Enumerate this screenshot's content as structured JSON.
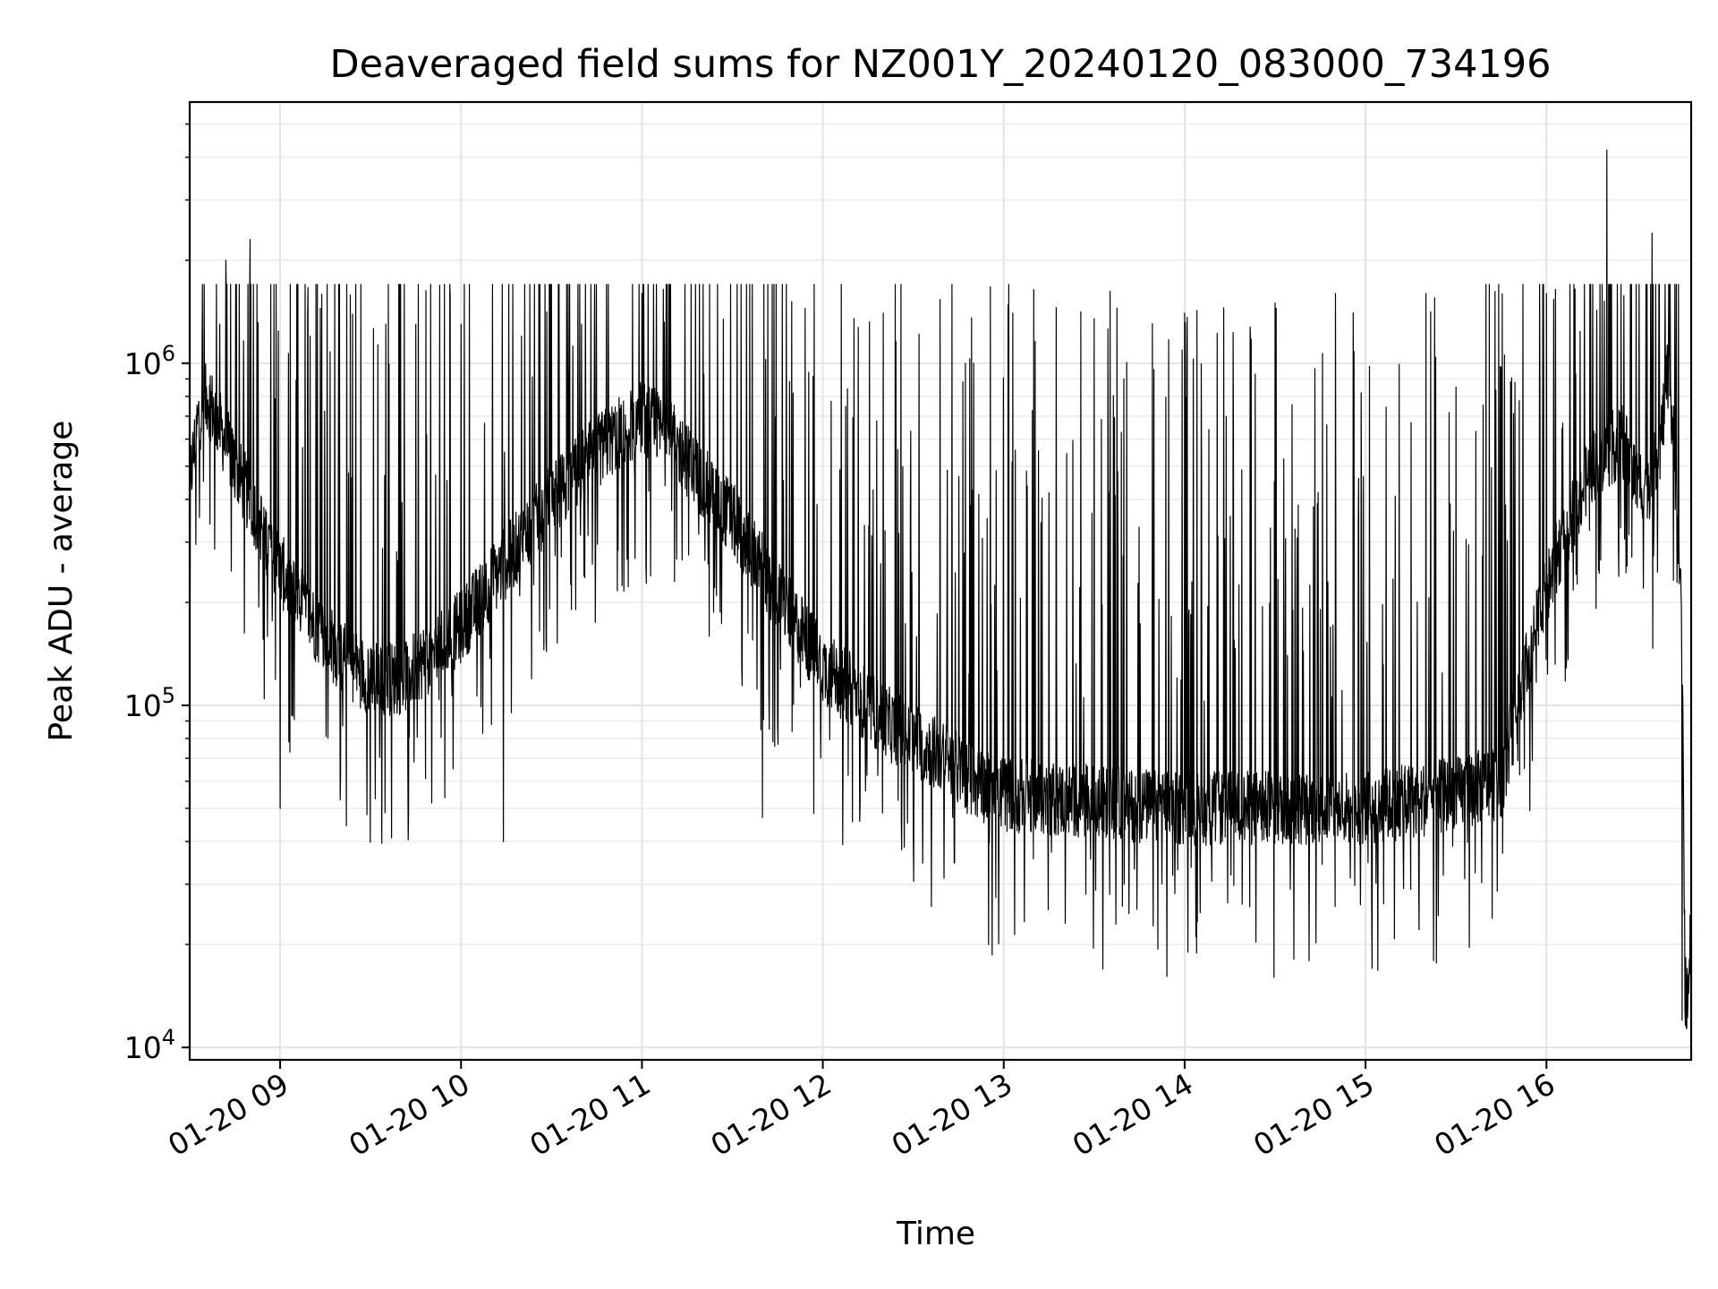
{
  "chart_data": {
    "type": "line",
    "title": "Deaveraged field sums for NZ001Y_20240120_083000_734196",
    "xlabel": "Time",
    "ylabel": "Peak ADU - average",
    "yscale": "log",
    "ylim": [
      9200,
      5800000
    ],
    "xlim": [
      "2024-01-20 08:30",
      "2024-01-20 16:48"
    ],
    "x_ticks": [
      "01-20 09",
      "01-20 10",
      "01-20 11",
      "01-20 12",
      "01-20 13",
      "01-20 14",
      "01-20 15",
      "01-20 16"
    ],
    "y_ticks": [
      {
        "base": "10",
        "exp": "4",
        "value": 10000
      },
      {
        "base": "10",
        "exp": "5",
        "value": 100000
      },
      {
        "base": "10",
        "exp": "6",
        "value": 1000000
      }
    ],
    "grid": true,
    "line_color": "#000000",
    "series": [
      {
        "baseline": [
          [
            "08:30",
            450000
          ],
          [
            "08:33",
            700000
          ],
          [
            "08:36",
            800000
          ],
          [
            "08:40",
            650000
          ],
          [
            "08:45",
            500000
          ],
          [
            "08:50",
            400000
          ],
          [
            "09:00",
            250000
          ],
          [
            "09:10",
            180000
          ],
          [
            "09:20",
            140000
          ],
          [
            "09:30",
            120000
          ],
          [
            "09:40",
            120000
          ],
          [
            "09:50",
            140000
          ],
          [
            "10:00",
            170000
          ],
          [
            "10:10",
            230000
          ],
          [
            "10:20",
            300000
          ],
          [
            "10:30",
            400000
          ],
          [
            "10:40",
            500000
          ],
          [
            "10:50",
            600000
          ],
          [
            "11:00",
            700000
          ],
          [
            "11:10",
            600000
          ],
          [
            "11:20",
            450000
          ],
          [
            "11:30",
            350000
          ],
          [
            "11:40",
            250000
          ],
          [
            "11:50",
            180000
          ],
          [
            "12:00",
            130000
          ],
          [
            "12:10",
            110000
          ],
          [
            "12:20",
            90000
          ],
          [
            "12:30",
            80000
          ],
          [
            "12:40",
            70000
          ],
          [
            "12:50",
            60000
          ],
          [
            "13:00",
            55000
          ],
          [
            "13:30",
            52000
          ],
          [
            "14:00",
            50000
          ],
          [
            "14:30",
            50000
          ],
          [
            "15:00",
            50000
          ],
          [
            "15:30",
            55000
          ],
          [
            "15:45",
            60000
          ],
          [
            "15:55",
            150000
          ],
          [
            "16:05",
            300000
          ],
          [
            "16:15",
            500000
          ],
          [
            "16:25",
            600000
          ],
          [
            "16:30",
            450000
          ],
          [
            "16:35",
            450000
          ],
          [
            "16:38",
            600000
          ],
          [
            "16:40",
            900000
          ],
          [
            "16:41",
            800000
          ],
          [
            "16:43",
            500000
          ],
          [
            "16:45",
            150000
          ],
          [
            "16:46",
            15000
          ],
          [
            "16:47",
            13000
          ],
          [
            "16:48",
            25000
          ]
        ],
        "peaks": [
          [
            "08:40",
            1300000
          ],
          [
            "08:42",
            2000000
          ],
          [
            "08:50",
            2300000
          ],
          [
            "09:10",
            1200000
          ],
          [
            "09:35",
            1300000
          ],
          [
            "09:45",
            1300000
          ],
          [
            "10:00",
            1300000
          ],
          [
            "10:20",
            1200000
          ],
          [
            "10:40",
            1300000
          ],
          [
            "11:00",
            1600000
          ],
          [
            "11:40",
            1500000
          ],
          [
            "12:20",
            1400000
          ],
          [
            "12:50",
            1000000
          ],
          [
            "13:03",
            1400000
          ],
          [
            "13:30",
            1350000
          ],
          [
            "14:00",
            1400000
          ],
          [
            "14:30",
            1500000
          ],
          [
            "14:50",
            1600000
          ],
          [
            "15:20",
            1600000
          ],
          [
            "15:40",
            1700000
          ],
          [
            "16:00",
            1600000
          ],
          [
            "16:20",
            4200000
          ],
          [
            "16:35",
            2400000
          ]
        ],
        "troughs": [
          [
            "09:00",
            50000
          ],
          [
            "09:37",
            41000
          ],
          [
            "10:14",
            40000
          ],
          [
            "11:40",
            47000
          ],
          [
            "12:30",
            42000
          ],
          [
            "13:40",
            30000
          ],
          [
            "14:35",
            29000
          ],
          [
            "15:15",
            29000
          ],
          [
            "16:45",
            12000
          ]
        ]
      }
    ]
  }
}
